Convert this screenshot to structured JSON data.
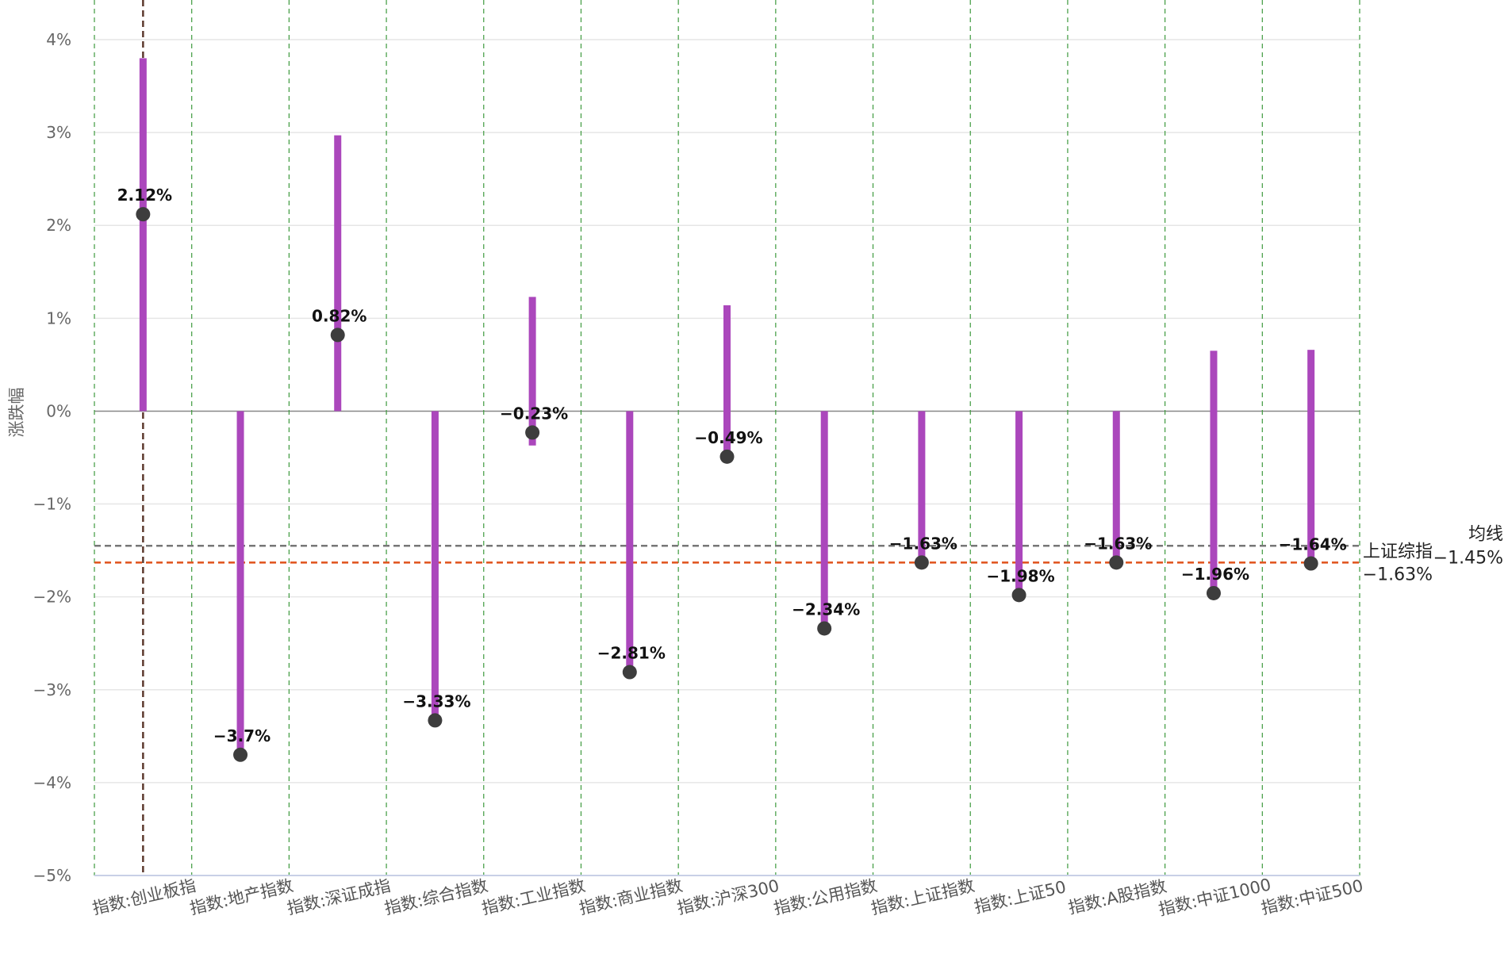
{
  "chart_data": {
    "type": "bar",
    "ylabel": "涨跌幅",
    "ylim": [
      -5,
      4
    ],
    "yticks": [
      4,
      3,
      2,
      1,
      0,
      -1,
      -2,
      -3,
      -4,
      -5
    ],
    "ytick_labels": [
      "4%",
      "3%",
      "2%",
      "1%",
      "0%",
      "−1%",
      "−2%",
      "−3%",
      "−4%",
      "−5%"
    ],
    "categories": [
      "指数:创业板指",
      "指数:地产指数",
      "指数:深证成指",
      "指数:综合指数",
      "指数:工业指数",
      "指数:商业指数",
      "指数:沪深300",
      "指数:公用指数",
      "指数:上证指数",
      "指数:上证50",
      "指数:A股指数",
      "指数:中证1000",
      "指数:中证500"
    ],
    "values": [
      2.12,
      -3.7,
      0.82,
      -3.33,
      -0.23,
      -2.81,
      -0.49,
      -2.34,
      -1.63,
      -1.98,
      -1.63,
      -1.96,
      -1.64
    ],
    "value_labels": [
      "2.12%",
      "−3.7%",
      "0.82%",
      "−3.33%",
      "−0.23%",
      "−2.81%",
      "−0.49%",
      "−2.34%",
      "−1.63%",
      "−1.98%",
      "−1.63%",
      "−1.96%",
      "−1.64%"
    ],
    "bar_ranges": [
      [
        0,
        3.8
      ],
      [
        0,
        -3.7
      ],
      [
        0,
        2.97
      ],
      [
        0,
        -3.33
      ],
      [
        -0.37,
        1.23
      ],
      [
        0,
        -2.81
      ],
      [
        -0.49,
        1.14
      ],
      [
        0,
        -2.34
      ],
      [
        0,
        -1.63
      ],
      [
        0,
        -1.98
      ],
      [
        0,
        -1.63
      ],
      [
        -1.96,
        0.65
      ],
      [
        -1.64,
        0.66
      ]
    ],
    "reference_lines": [
      {
        "name": "均线",
        "value": -1.45,
        "label": "−1.45%",
        "color": "#777777"
      },
      {
        "name": "上证综指",
        "value": -1.63,
        "label": "−1.63%",
        "color": "#e0521b"
      }
    ],
    "highlight_category": "指数:创业板指",
    "colors": {
      "bar": "#ab47bc",
      "point": "#3d3d3d",
      "vertical_grid": "#3e9a3e",
      "horizontal_grid": "#e6e6e6",
      "highlight_line": "#5d3a2e",
      "zero_line": "#888888"
    },
    "grid": true
  }
}
